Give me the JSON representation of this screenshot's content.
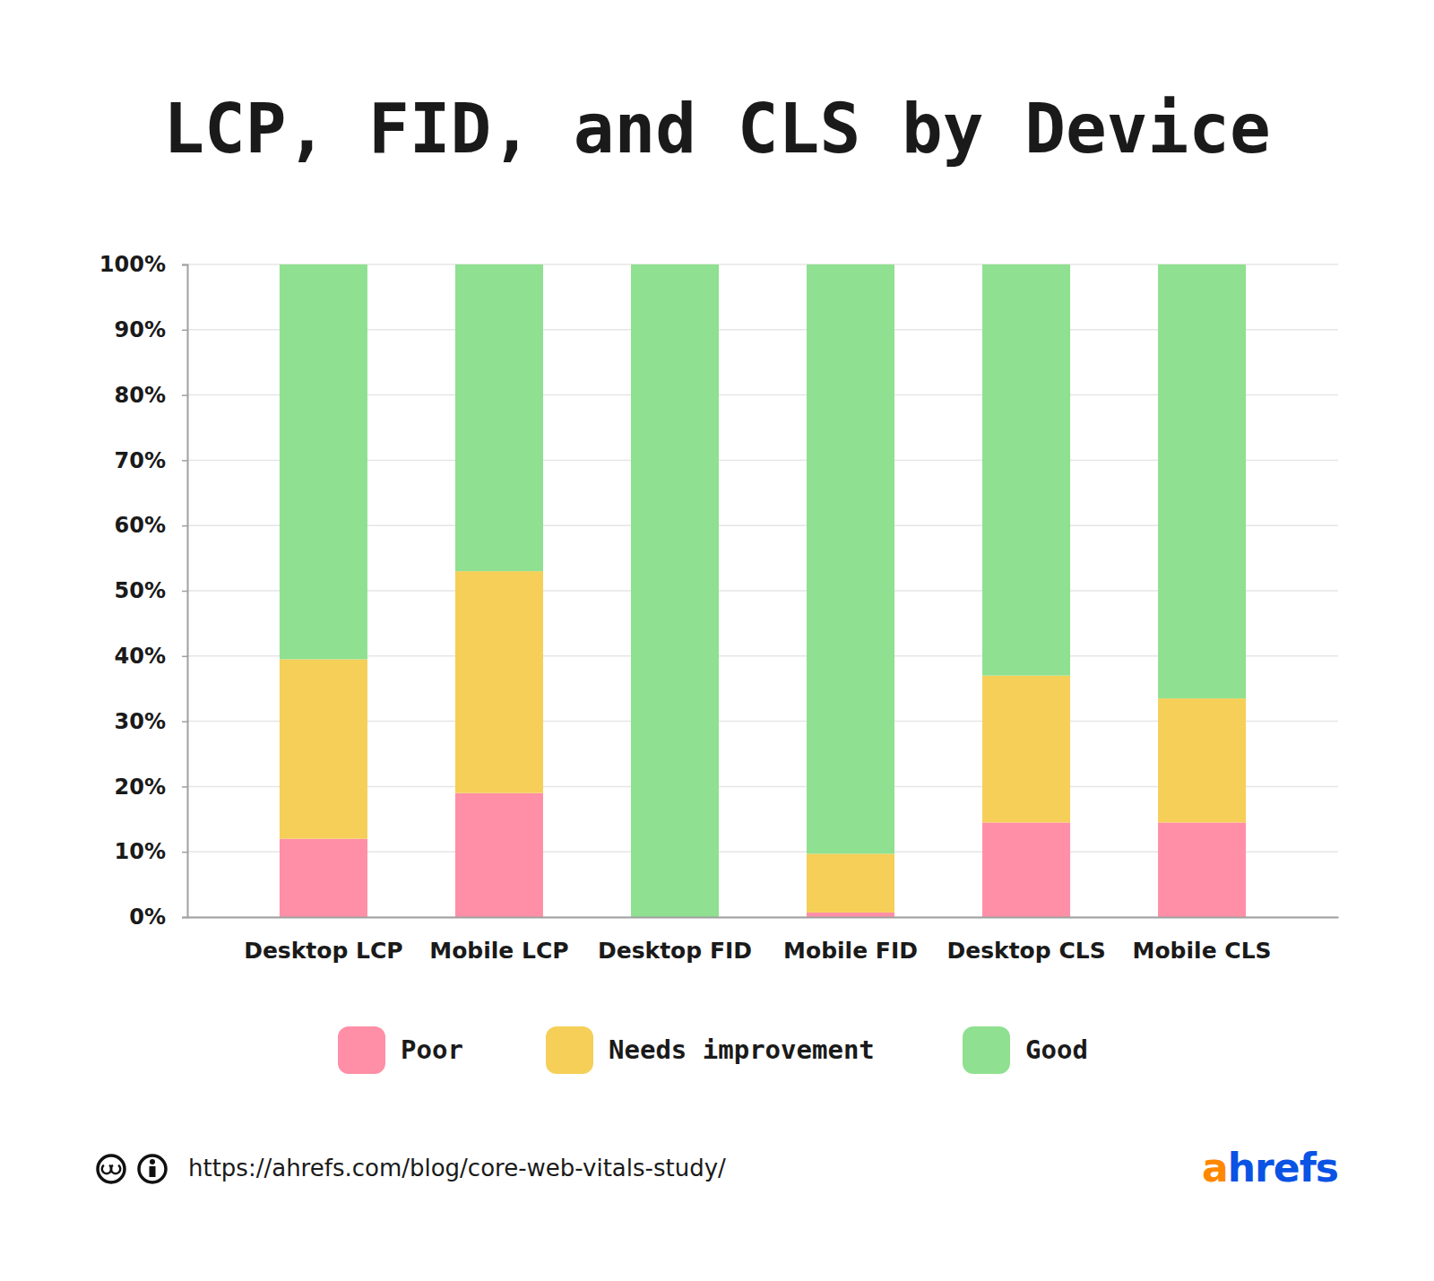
{
  "chart_data": {
    "type": "bar",
    "title": "LCP, FID, and CLS by Device",
    "categories": [
      "Desktop LCP",
      "Mobile LCP",
      "Desktop FID",
      "Mobile FID",
      "Desktop CLS",
      "Mobile CLS"
    ],
    "series": [
      {
        "name": "Poor",
        "color": "#ff8fa6",
        "values": [
          12,
          19,
          0,
          0.7,
          14.5,
          14.5
        ]
      },
      {
        "name": "Needs improvement",
        "color": "#f5cf57",
        "values": [
          27.5,
          34,
          0,
          9,
          22.5,
          19
        ]
      },
      {
        "name": "Good",
        "color": "#8fe090",
        "values": [
          60.5,
          47,
          100,
          90.3,
          63,
          66.5
        ]
      }
    ],
    "stacked": true,
    "grid": true,
    "legend": "bottom",
    "ylim": [
      0,
      100
    ],
    "yticks": [
      {
        "value": 0,
        "label": "0%"
      },
      {
        "value": 10,
        "label": "10%"
      },
      {
        "value": 20,
        "label": "20%"
      },
      {
        "value": 30,
        "label": "30%"
      },
      {
        "value": 40,
        "label": "40%"
      },
      {
        "value": 50,
        "label": "50%"
      },
      {
        "value": 60,
        "label": "60%"
      },
      {
        "value": 70,
        "label": "70%"
      },
      {
        "value": 80,
        "label": "80%"
      },
      {
        "value": 90,
        "label": "90%"
      },
      {
        "value": 100,
        "label": "100%"
      }
    ],
    "annotations": [
      "https://ahrefs.com/blog/core-web-vitals-study/",
      "ahrefs"
    ]
  }
}
